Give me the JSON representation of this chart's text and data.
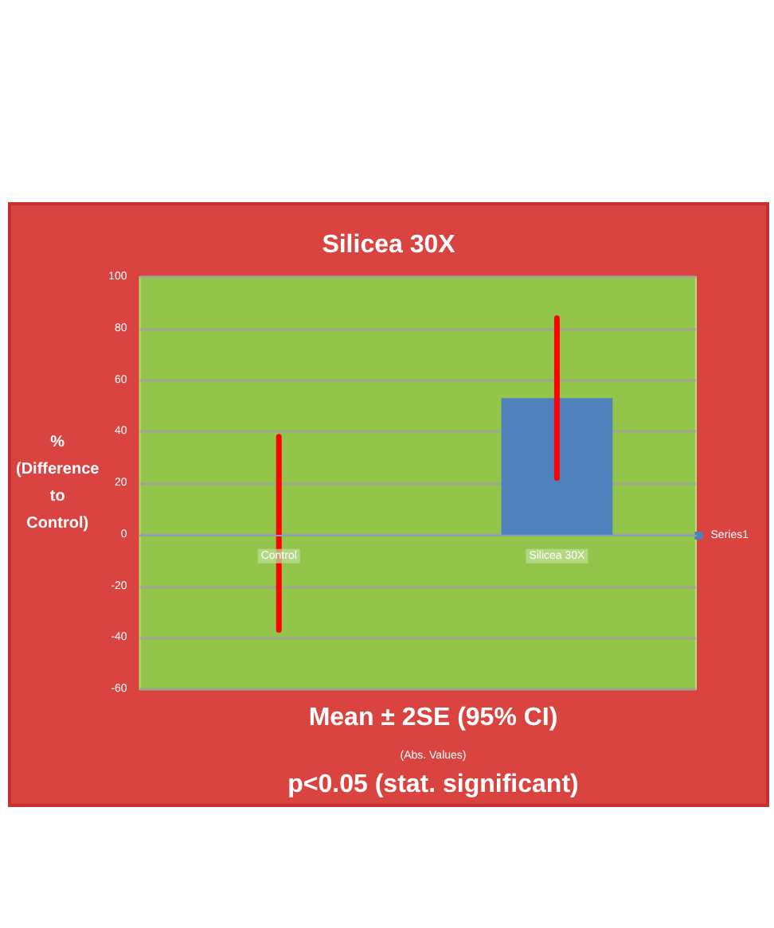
{
  "chart_data": {
    "type": "bar",
    "title": "Silicea 30X",
    "ylabel": "% (Difference to Control)",
    "categories": [
      "Control",
      "Silicea 30X"
    ],
    "series": [
      {
        "name": "Series1",
        "color": "#4f81bd",
        "values": [
          0,
          53
        ],
        "errors": [
          [
            -37,
            38
          ],
          [
            22,
            84
          ]
        ]
      }
    ],
    "ylim": [
      -60,
      100
    ],
    "yticks": [
      -60,
      -40,
      -20,
      0,
      20,
      40,
      60,
      80,
      100
    ],
    "grid": "y",
    "legend": "right",
    "annotations": [
      "Mean ± 2SE (95% CI)",
      "(Abs. Values)",
      "p<0.05 (stat. significant)"
    ]
  }
}
